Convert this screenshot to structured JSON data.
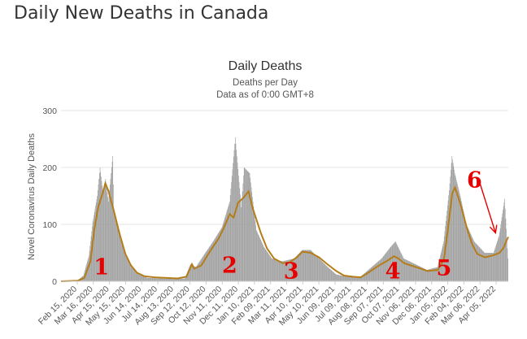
{
  "page": {
    "title": "Daily New Deaths in Canada"
  },
  "chart_data": {
    "type": "bar",
    "title": "Daily Deaths",
    "subtitle_lines": [
      "Deaths per Day",
      "Data as of 0:00 GMT+8"
    ],
    "ylabel": "Novel Coronavirus Daily Deaths",
    "xlabel": "",
    "ylim": [
      0,
      300
    ],
    "y_ticks": [
      0,
      100,
      200,
      300
    ],
    "x_start": "2020-02-15",
    "x_end": "2022-05-01",
    "x_tick_labels": [
      "Feb 15, 2020",
      "Mar 16, 2020",
      "Apr 15, 2020",
      "May 15, 2020",
      "Jun 14, 2020",
      "Jul 14, 2020",
      "Aug 13, 2020",
      "Sep 12, 2020",
      "Oct 12, 2020",
      "Nov 11, 2020",
      "Dec 11, 2020",
      "Jan 10, 2021",
      "Feb 09, 2021",
      "Mar 11, 2021",
      "Apr 10, 2021",
      "May 10, 2021",
      "Jun 09, 2021",
      "Jul 09, 2021",
      "Aug 08, 2021",
      "Sep 07, 2021",
      "Oct 07, 2021",
      "Nov 06, 2021",
      "Dec 06, 2021",
      "Jan 05, 2022",
      "Feb 04, 2022",
      "Mar 06, 2022",
      "Apr 05, 2022"
    ],
    "legend": "none",
    "grid": "horizontal",
    "series": [
      {
        "kind": "bar",
        "color": "#999999",
        "points": [
          [
            "2020-02-15",
            0
          ],
          [
            "2020-03-16",
            2
          ],
          [
            "2020-03-26",
            10
          ],
          [
            "2020-04-05",
            45
          ],
          [
            "2020-04-12",
            105
          ],
          [
            "2020-04-20",
            150
          ],
          [
            "2020-04-25",
            200
          ],
          [
            "2020-04-30",
            160
          ],
          [
            "2020-05-05",
            180
          ],
          [
            "2020-05-10",
            140
          ],
          [
            "2020-05-18",
            220
          ],
          [
            "2020-05-20",
            120
          ],
          [
            "2020-05-30",
            90
          ],
          [
            "2020-06-10",
            45
          ],
          [
            "2020-06-20",
            25
          ],
          [
            "2020-07-05",
            12
          ],
          [
            "2020-07-20",
            6
          ],
          [
            "2020-08-10",
            5
          ],
          [
            "2020-09-05",
            4
          ],
          [
            "2020-09-25",
            5
          ],
          [
            "2020-10-05",
            30
          ],
          [
            "2020-10-15",
            25
          ],
          [
            "2020-11-01",
            50
          ],
          [
            "2020-11-15",
            70
          ],
          [
            "2020-12-01",
            95
          ],
          [
            "2020-12-15",
            140
          ],
          [
            "2020-12-25",
            253
          ],
          [
            "2021-01-05",
            130
          ],
          [
            "2021-01-10",
            200
          ],
          [
            "2021-01-20",
            190
          ],
          [
            "2021-02-01",
            90
          ],
          [
            "2021-02-15",
            60
          ],
          [
            "2021-03-01",
            40
          ],
          [
            "2021-03-20",
            35
          ],
          [
            "2021-04-10",
            40
          ],
          [
            "2021-04-25",
            55
          ],
          [
            "2021-05-10",
            55
          ],
          [
            "2021-05-25",
            40
          ],
          [
            "2021-06-10",
            25
          ],
          [
            "2021-06-25",
            12
          ],
          [
            "2021-07-15",
            8
          ],
          [
            "2021-08-08",
            8
          ],
          [
            "2021-08-28",
            25
          ],
          [
            "2021-09-15",
            40
          ],
          [
            "2021-10-01",
            60
          ],
          [
            "2021-10-10",
            70
          ],
          [
            "2021-10-25",
            40
          ],
          [
            "2021-11-15",
            30
          ],
          [
            "2021-12-06",
            20
          ],
          [
            "2021-12-25",
            25
          ],
          [
            "2022-01-05",
            70
          ],
          [
            "2022-01-15",
            160
          ],
          [
            "2022-01-20",
            220
          ],
          [
            "2022-01-25",
            190
          ],
          [
            "2022-02-04",
            150
          ],
          [
            "2022-02-15",
            100
          ],
          [
            "2022-03-01",
            70
          ],
          [
            "2022-03-20",
            50
          ],
          [
            "2022-04-05",
            50
          ],
          [
            "2022-04-15",
            80
          ],
          [
            "2022-04-25",
            145
          ],
          [
            "2022-05-01",
            40
          ]
        ]
      },
      {
        "kind": "moving-average",
        "color": "#b57d19",
        "points": [
          [
            "2020-02-15",
            0
          ],
          [
            "2020-03-16",
            1
          ],
          [
            "2020-03-28",
            6
          ],
          [
            "2020-04-08",
            35
          ],
          [
            "2020-04-15",
            90
          ],
          [
            "2020-04-22",
            130
          ],
          [
            "2020-04-30",
            155
          ],
          [
            "2020-05-05",
            172
          ],
          [
            "2020-05-10",
            160
          ],
          [
            "2020-05-20",
            125
          ],
          [
            "2020-05-30",
            85
          ],
          [
            "2020-06-10",
            48
          ],
          [
            "2020-06-20",
            28
          ],
          [
            "2020-07-01",
            15
          ],
          [
            "2020-07-14",
            9
          ],
          [
            "2020-08-01",
            7
          ],
          [
            "2020-08-20",
            6
          ],
          [
            "2020-09-12",
            5
          ],
          [
            "2020-09-28",
            8
          ],
          [
            "2020-10-08",
            30
          ],
          [
            "2020-10-12",
            22
          ],
          [
            "2020-10-25",
            28
          ],
          [
            "2020-11-11",
            55
          ],
          [
            "2020-11-25",
            75
          ],
          [
            "2020-12-05",
            95
          ],
          [
            "2020-12-15",
            118
          ],
          [
            "2020-12-22",
            112
          ],
          [
            "2020-12-30",
            138
          ],
          [
            "2021-01-10",
            148
          ],
          [
            "2021-01-18",
            158
          ],
          [
            "2021-01-25",
            130
          ],
          [
            "2021-02-09",
            85
          ],
          [
            "2021-02-20",
            58
          ],
          [
            "2021-03-05",
            40
          ],
          [
            "2021-03-20",
            32
          ],
          [
            "2021-04-01",
            33
          ],
          [
            "2021-04-15",
            42
          ],
          [
            "2021-04-25",
            52
          ],
          [
            "2021-05-10",
            50
          ],
          [
            "2021-05-25",
            42
          ],
          [
            "2021-06-09",
            30
          ],
          [
            "2021-06-25",
            18
          ],
          [
            "2021-07-09",
            10
          ],
          [
            "2021-07-25",
            8
          ],
          [
            "2021-08-08",
            7
          ],
          [
            "2021-08-20",
            14
          ],
          [
            "2021-09-07",
            26
          ],
          [
            "2021-09-25",
            36
          ],
          [
            "2021-10-07",
            44
          ],
          [
            "2021-10-15",
            40
          ],
          [
            "2021-10-25",
            32
          ],
          [
            "2021-11-06",
            28
          ],
          [
            "2021-11-25",
            22
          ],
          [
            "2021-12-06",
            18
          ],
          [
            "2021-12-25",
            20
          ],
          [
            "2022-01-05",
            38
          ],
          [
            "2022-01-12",
            90
          ],
          [
            "2022-01-20",
            155
          ],
          [
            "2022-01-25",
            165
          ],
          [
            "2022-02-04",
            135
          ],
          [
            "2022-02-15",
            95
          ],
          [
            "2022-02-25",
            65
          ],
          [
            "2022-03-06",
            48
          ],
          [
            "2022-03-20",
            42
          ],
          [
            "2022-04-05",
            46
          ],
          [
            "2022-04-15",
            50
          ],
          [
            "2022-04-22",
            58
          ],
          [
            "2022-04-28",
            72
          ],
          [
            "2022-05-01",
            78
          ]
        ]
      }
    ],
    "annotations": [
      {
        "text": "1",
        "x": "2020-04-28",
        "y": 12,
        "color": "#e60000"
      },
      {
        "text": "2",
        "x": "2020-12-15",
        "y": 15,
        "color": "#e60000"
      },
      {
        "text": "3",
        "x": "2021-04-05",
        "y": 5,
        "color": "#e60000"
      },
      {
        "text": "4",
        "x": "2021-10-05",
        "y": 5,
        "color": "#e60000"
      },
      {
        "text": "5",
        "x": "2022-01-05",
        "y": 10,
        "color": "#e60000"
      },
      {
        "text": "6",
        "x": "2022-03-01",
        "y": 165,
        "color": "#e60000"
      }
    ],
    "arrow": {
      "from": [
        "2022-03-10",
        175
      ],
      "to": [
        "2022-04-08",
        85
      ],
      "color": "#e60000"
    }
  }
}
